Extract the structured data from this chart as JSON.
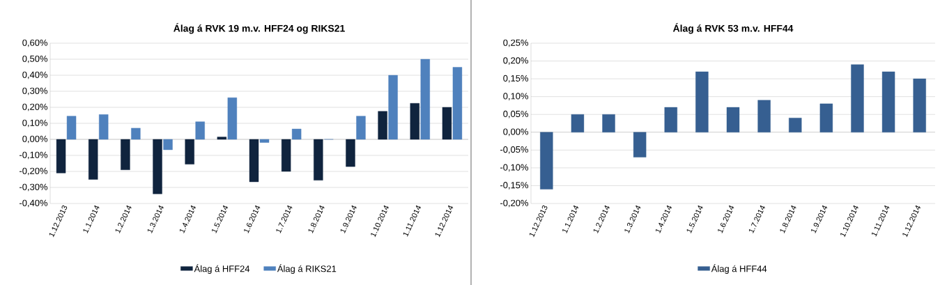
{
  "chart_data": [
    {
      "type": "bar",
      "title": "Álag á RVK 19 m.v. HFF24 og RIKS21",
      "categories": [
        "1.12.2013",
        "1.1.2014",
        "1.2.2014",
        "1.3.2014",
        "1.4.2014",
        "1.5.2014",
        "1.6.2014",
        "1.7.2014",
        "1.8.2014",
        "1.9.2014",
        "1.10.2014",
        "1.11.2014",
        "1.12.2014"
      ],
      "series": [
        {
          "name": "Álag á HFF24",
          "color": "#10243e",
          "values": [
            -0.21,
            -0.25,
            -0.19,
            -0.34,
            -0.155,
            0.015,
            -0.265,
            -0.2,
            -0.255,
            -0.17,
            0.175,
            0.225,
            0.2
          ]
        },
        {
          "name": "Álag á RIKS21",
          "color": "#4f81bd",
          "values": [
            0.145,
            0.155,
            0.07,
            -0.065,
            0.11,
            0.26,
            -0.02,
            0.065,
            0,
            0.145,
            0.4,
            0.5,
            0.45
          ]
        }
      ],
      "ylim": [
        -0.4,
        0.6
      ],
      "yticks": [
        {
          "value": -0.4,
          "label": "-0,40%"
        },
        {
          "value": -0.3,
          "label": "-0,30%"
        },
        {
          "value": -0.2,
          "label": "-0,20%"
        },
        {
          "value": -0.1,
          "label": "-0,10%"
        },
        {
          "value": 0,
          "label": "0,00%"
        },
        {
          "value": 0.1,
          "label": "0,10%"
        },
        {
          "value": 0.2,
          "label": "0,20%"
        },
        {
          "value": 0.3,
          "label": "0,30%"
        },
        {
          "value": 0.4,
          "label": "0,40%"
        },
        {
          "value": 0.5,
          "label": "0,50%"
        },
        {
          "value": 0.6,
          "label": "0,60%"
        }
      ],
      "grid": "y",
      "legend": "bottom"
    },
    {
      "type": "bar",
      "title": "Álag á RVK 53 m.v. HFF44",
      "categories": [
        "1.12.2013",
        "1.1.2014",
        "1.2.2014",
        "1.3.2014",
        "1.4.2014",
        "1.5.2014",
        "1.6.2014",
        "1.7.2014",
        "1.8.2014",
        "1.9.2014",
        "1.10.2014",
        "1.11.2014",
        "1.12.2014"
      ],
      "series": [
        {
          "name": "Álag á HFF44",
          "color": "#365f91",
          "values": [
            -0.16,
            0.05,
            0.05,
            -0.07,
            0.07,
            0.17,
            0.07,
            0.09,
            0.04,
            0.08,
            0.19,
            0.17,
            0.15
          ]
        }
      ],
      "ylim": [
        -0.2,
        0.25
      ],
      "yticks": [
        {
          "value": -0.2,
          "label": "-0,20%"
        },
        {
          "value": -0.15,
          "label": "-0,15%"
        },
        {
          "value": -0.1,
          "label": "-0,10%"
        },
        {
          "value": -0.05,
          "label": "-0,05%"
        },
        {
          "value": 0,
          "label": "0,00%"
        },
        {
          "value": 0.05,
          "label": "0,05%"
        },
        {
          "value": 0.1,
          "label": "0,10%"
        },
        {
          "value": 0.15,
          "label": "0,15%"
        },
        {
          "value": 0.2,
          "label": "0,20%"
        },
        {
          "value": 0.25,
          "label": "0,25%"
        }
      ],
      "grid": "y",
      "legend": "bottom"
    }
  ]
}
